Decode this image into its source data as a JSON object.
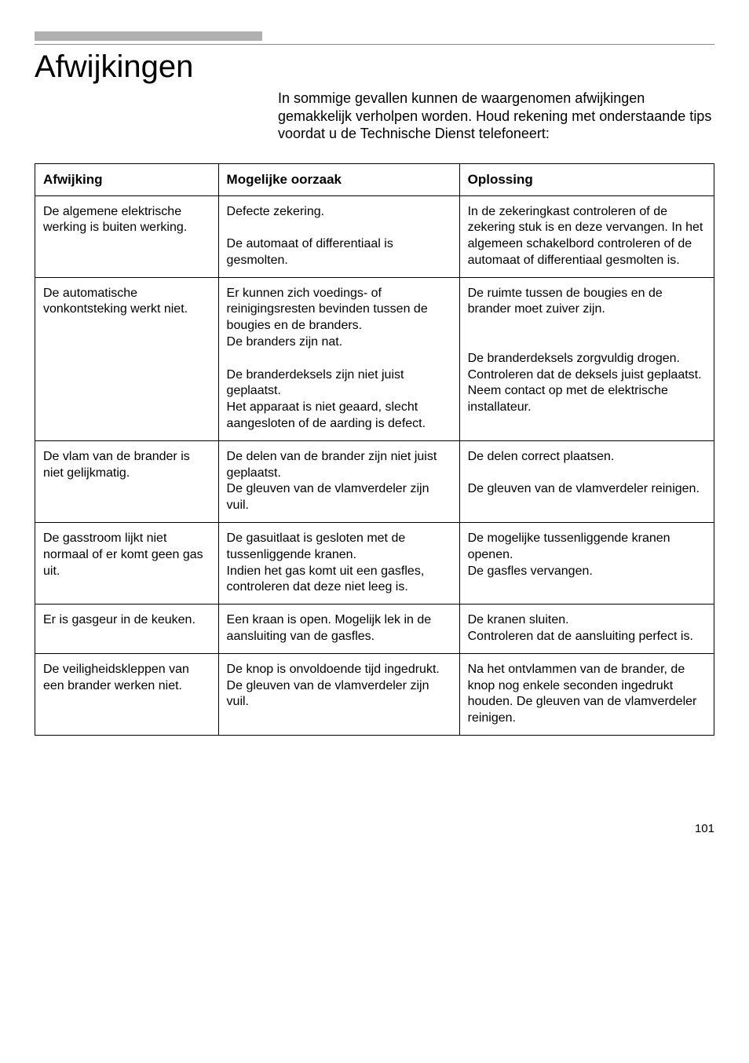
{
  "page_title": "Afwijkingen",
  "intro_text": "In sommige gevallen kunnen de waargenomen afwijkingen gemakkelijk verholpen worden. Houd rekening met onderstaande tips voordat u de Technische Dienst telefoneert:",
  "table": {
    "columns": [
      "Afwijking",
      "Mogelijke oorzaak",
      "Oplossing"
    ],
    "rows": [
      {
        "afw": "De algemene elektrische werking is buiten werking.",
        "oor": "Defecte zekering.\n\nDe automaat of differentiaal is gesmolten.",
        "opl": "In de zekeringkast controleren of de zekering stuk is en deze vervangen. In het algemeen schakelbord controleren of de automaat of differentiaal gesmolten is."
      },
      {
        "afw": "De automatische vonkontsteking werkt niet.",
        "oor": "Er kunnen zich voedings- of reinigingsresten bevinden tussen de bougies en de branders.\nDe branders zijn nat.\n\nDe branderdeksels zijn niet juist geplaatst.\nHet apparaat is niet geaard, slecht aangesloten of de aarding is defect.",
        "opl": "De ruimte tussen de bougies en de brander moet zuiver zijn.\n\n\nDe branderdeksels zorgvuldig drogen.\nControleren dat de deksels juist geplaatst.\nNeem contact op met de elektrische installateur."
      },
      {
        "afw": "De vlam van de brander is niet gelijkmatig.",
        "oor": "De delen van de brander zijn niet juist geplaatst.\nDe gleuven van de vlamverdeler zijn vuil.",
        "opl": "De delen correct plaatsen.\n\nDe gleuven van de vlamverdeler reinigen."
      },
      {
        "afw": "De gasstroom lijkt niet normaal of er komt geen gas uit.",
        "oor": "De gasuitlaat is gesloten met de tussenliggende kranen.\nIndien het gas komt uit een gasfles, controleren dat deze niet leeg is.",
        "opl": "De mogelijke tussenliggende kranen openen.\nDe gasfles vervangen."
      },
      {
        "afw": "Er is gasgeur in de keuken.",
        "oor": "Een kraan is open. Mogelijk lek in de aansluiting van de gasfles.",
        "opl": "De kranen sluiten.\nControleren dat de aansluiting perfect is."
      },
      {
        "afw": "De veiligheidskleppen van een brander werken niet.",
        "oor": "De knop is onvoldoende tijd ingedrukt. De gleuven van de vlamverdeler zijn vuil.",
        "opl": "Na het ontvlammen van de brander, de knop nog enkele seconden ingedrukt houden. De gleuven van de vlamverdeler reinigen."
      }
    ]
  },
  "page_number": "101"
}
